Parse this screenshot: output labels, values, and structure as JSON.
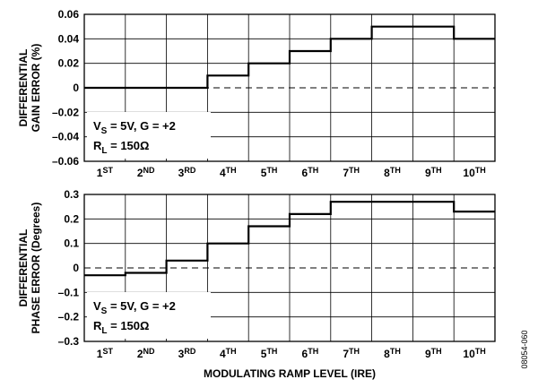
{
  "figure_code": "08054-060",
  "chart_data": [
    {
      "type": "line",
      "step": true,
      "categories": [
        "1ST",
        "2ND",
        "3RD",
        "4TH",
        "5TH",
        "6TH",
        "7TH",
        "8TH",
        "9TH",
        "10TH"
      ],
      "category_labels": [
        {
          "num": "1",
          "sup": "ST"
        },
        {
          "num": "2",
          "sup": "ND"
        },
        {
          "num": "3",
          "sup": "RD"
        },
        {
          "num": "4",
          "sup": "TH"
        },
        {
          "num": "5",
          "sup": "TH"
        },
        {
          "num": "6",
          "sup": "TH"
        },
        {
          "num": "7",
          "sup": "TH"
        },
        {
          "num": "8",
          "sup": "TH"
        },
        {
          "num": "9",
          "sup": "TH"
        },
        {
          "num": "10",
          "sup": "TH"
        }
      ],
      "values": [
        0,
        0,
        0,
        0.01,
        0.02,
        0.03,
        0.04,
        0.05,
        0.05,
        0.04
      ],
      "ylabel_lines": [
        "DIFFERENTIAL",
        "GAIN ERROR (%)"
      ],
      "ylim": [
        -0.06,
        0.06
      ],
      "yticks": [
        -0.06,
        -0.04,
        -0.02,
        0,
        0.02,
        0.04,
        0.06
      ],
      "ytick_labels": [
        "–0.06",
        "–0.04",
        "–0.02",
        "0",
        "0.02",
        "0.04",
        "0.06"
      ],
      "grid": true,
      "zero_line": "dashed",
      "annotation": {
        "line1": {
          "pre": "V",
          "sub": "S",
          "post": " = 5V, G = +2"
        },
        "line2": {
          "pre": "R",
          "sub": "L",
          "post": " = 150Ω"
        }
      }
    },
    {
      "type": "line",
      "step": true,
      "categories": [
        "1ST",
        "2ND",
        "3RD",
        "4TH",
        "5TH",
        "6TH",
        "7TH",
        "8TH",
        "9TH",
        "10TH"
      ],
      "category_labels": [
        {
          "num": "1",
          "sup": "ST"
        },
        {
          "num": "2",
          "sup": "ND"
        },
        {
          "num": "3",
          "sup": "RD"
        },
        {
          "num": "4",
          "sup": "TH"
        },
        {
          "num": "5",
          "sup": "TH"
        },
        {
          "num": "6",
          "sup": "TH"
        },
        {
          "num": "7",
          "sup": "TH"
        },
        {
          "num": "8",
          "sup": "TH"
        },
        {
          "num": "9",
          "sup": "TH"
        },
        {
          "num": "10",
          "sup": "TH"
        }
      ],
      "values": [
        -0.03,
        -0.02,
        0.03,
        0.1,
        0.17,
        0.22,
        0.27,
        0.27,
        0.27,
        0.23
      ],
      "ylabel_lines": [
        "DIFFERENTIAL",
        "PHASE ERROR (Degrees)"
      ],
      "xlabel": "MODULATING RAMP LEVEL (IRE)",
      "ylim": [
        -0.3,
        0.3
      ],
      "yticks": [
        -0.3,
        -0.2,
        -0.1,
        0,
        0.1,
        0.2,
        0.3
      ],
      "ytick_labels": [
        "–0.3",
        "–0.2",
        "–0.1",
        "0",
        "0.1",
        "0.2",
        "0.3"
      ],
      "grid": true,
      "zero_line": "dashed",
      "annotation": {
        "line1": {
          "pre": "V",
          "sub": "S",
          "post": " = 5V, G = +2"
        },
        "line2": {
          "pre": "R",
          "sub": "L",
          "post": " = 150Ω"
        }
      }
    }
  ]
}
